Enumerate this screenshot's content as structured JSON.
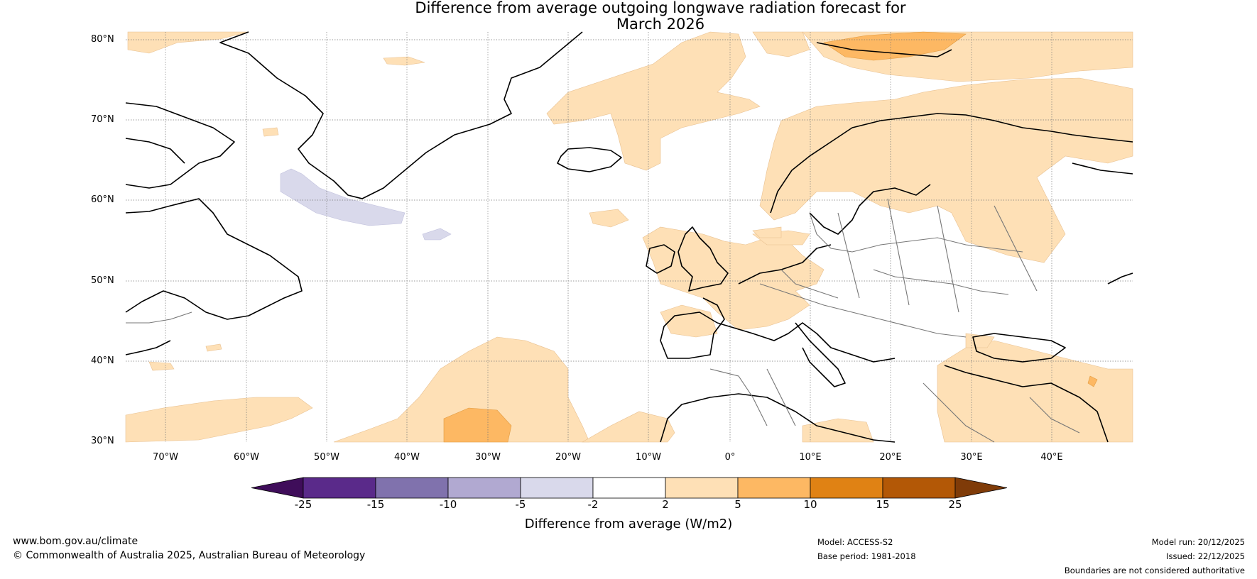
{
  "title": {
    "line1": "Difference from average outgoing longwave radiation forecast for",
    "line2": "March 2026"
  },
  "map": {
    "lat_labels": [
      "80°N",
      "70°N",
      "60°N",
      "50°N",
      "40°N",
      "30°N"
    ],
    "lon_labels": [
      "70°W",
      "60°W",
      "50°W",
      "40°W",
      "30°W",
      "20°W",
      "10°W",
      "0°",
      "10°E",
      "20°E",
      "30°E",
      "40°E"
    ]
  },
  "colorbar": {
    "title": "Difference from average (W/m2)",
    "ticks": [
      "-25",
      "-15",
      "-10",
      "-5",
      "-2",
      "2",
      "5",
      "10",
      "15",
      "25"
    ],
    "colors": [
      "#3f0d5a",
      "#5a2a8a",
      "#8072ad",
      "#b1a9d1",
      "#d9d9eb",
      "#ffffff",
      "#fee0b6",
      "#fdb863",
      "#e08214",
      "#b35806",
      "#7f3b08"
    ]
  },
  "footer": {
    "website": "www.bom.gov.au/climate",
    "copyright": "© Commonwealth of Australia 2025, Australian Bureau of Meteorology",
    "model": "Model: ACCESS-S2",
    "base_period": "Base period: 1981-2018",
    "model_run": "Model run: 20/12/2025",
    "issued": "Issued: 22/12/2025",
    "disclaimer": "Boundaries are not considered authoritative"
  }
}
